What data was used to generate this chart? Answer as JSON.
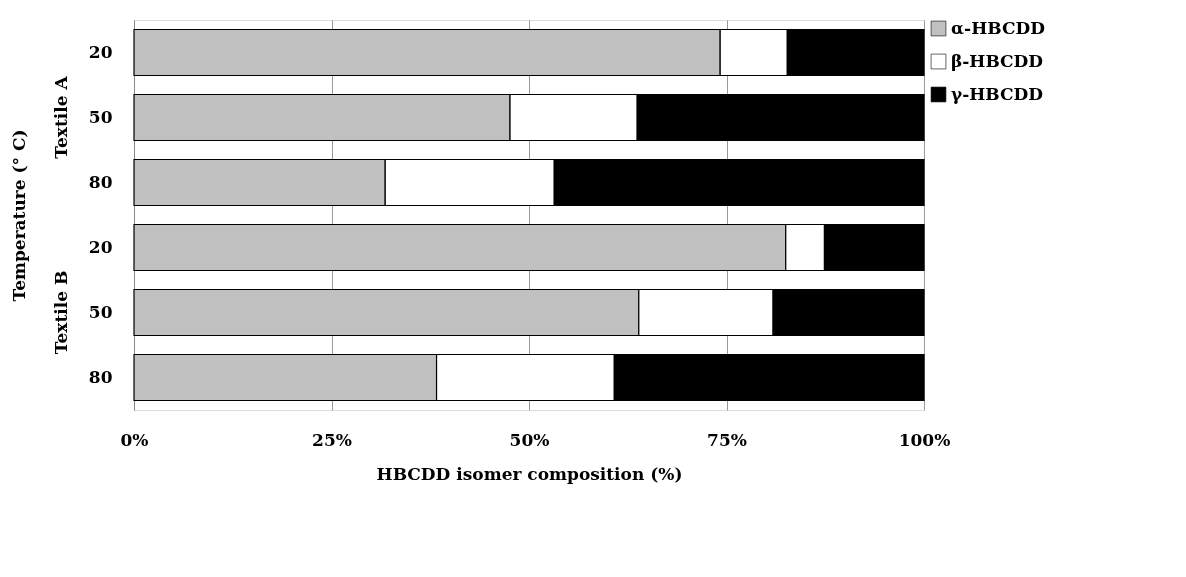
{
  "chart_data": {
    "type": "bar",
    "orientation": "horizontal",
    "stacked": true,
    "categories": [
      "20",
      "50",
      "80",
      "20",
      "50",
      "80"
    ],
    "series": [
      {
        "name": "α-HBCDD",
        "color": "#c0c0c0",
        "values": [
          74.2,
          47.6,
          31.8,
          82.5,
          63.9,
          38.3
        ]
      },
      {
        "name": "β-HBCDD",
        "color": "#ffffff",
        "values": [
          8.5,
          16.1,
          21.4,
          4.9,
          17.0,
          22.5
        ]
      },
      {
        "name": "γ-HBCDD",
        "color": "#000000",
        "values": [
          17.3,
          36.3,
          46.8,
          12.6,
          19.1,
          39.2
        ]
      }
    ],
    "xlim": [
      0,
      100
    ],
    "xticks": [
      {
        "value": 0,
        "label": "0%"
      },
      {
        "value": 25,
        "label": "25%"
      },
      {
        "value": 50,
        "label": "50%"
      },
      {
        "value": 75,
        "label": "75%"
      },
      {
        "value": 100,
        "label": "100%"
      }
    ],
    "xlabel": "HBCDD  isomer composition  (%)",
    "ylabel": "Temperature (° C)",
    "annotations": [
      "Textile A",
      "Textile B"
    ],
    "grid": "x",
    "legend": "right"
  }
}
